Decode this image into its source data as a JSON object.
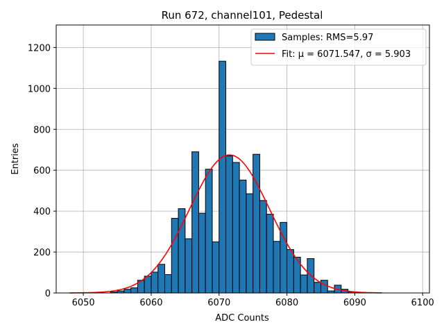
{
  "chart_data": {
    "type": "bar",
    "title": "Run 672, channel101, Pedestal",
    "xlabel": "ADC Counts",
    "ylabel": "Entries",
    "xlim": [
      6046,
      6101
    ],
    "ylim": [
      0,
      1310
    ],
    "xticks": [
      "6050",
      "6060",
      "6070",
      "6080",
      "6090",
      "6100"
    ],
    "xtick_values": [
      6050,
      6060,
      6070,
      6080,
      6090,
      6100
    ],
    "yticks": [
      "0",
      "200",
      "400",
      "600",
      "800",
      "1000",
      "1200"
    ],
    "ytick_values": [
      0,
      200,
      400,
      600,
      800,
      1000,
      1200
    ],
    "grid": true,
    "legend_position": "top-right",
    "bin_width": 1,
    "bin_starts": [
      6048,
      6049,
      6050,
      6051,
      6052,
      6053,
      6054,
      6055,
      6056,
      6057,
      6058,
      6059,
      6060,
      6061,
      6062,
      6063,
      6064,
      6065,
      6066,
      6067,
      6068,
      6069,
      6070,
      6071,
      6072,
      6073,
      6074,
      6075,
      6076,
      6077,
      6078,
      6079,
      6080,
      6081,
      6082,
      6083,
      6084,
      6085,
      6086,
      6087,
      6088,
      6089,
      6090,
      6091,
      6092,
      6093
    ],
    "series": [
      {
        "name": "Samples: RMS=5.97",
        "color": "#1f77b4",
        "values": [
          0,
          0,
          0,
          0,
          0,
          0,
          5,
          10,
          18,
          25,
          62,
          82,
          102,
          140,
          90,
          365,
          412,
          265,
          690,
          390,
          605,
          250,
          1133,
          670,
          638,
          552,
          485,
          678,
          452,
          385,
          252,
          345,
          212,
          175,
          88,
          168,
          52,
          62,
          10,
          38,
          18,
          5,
          0,
          0,
          0,
          0
        ]
      },
      {
        "name": "Fit: μ = 6071.547, σ = 5.903",
        "color": "#ff0000",
        "type": "gaussian",
        "mu": 6071.547,
        "sigma": 5.903,
        "amplitude": 675,
        "x_range": [
          6048,
          6094
        ]
      }
    ]
  }
}
